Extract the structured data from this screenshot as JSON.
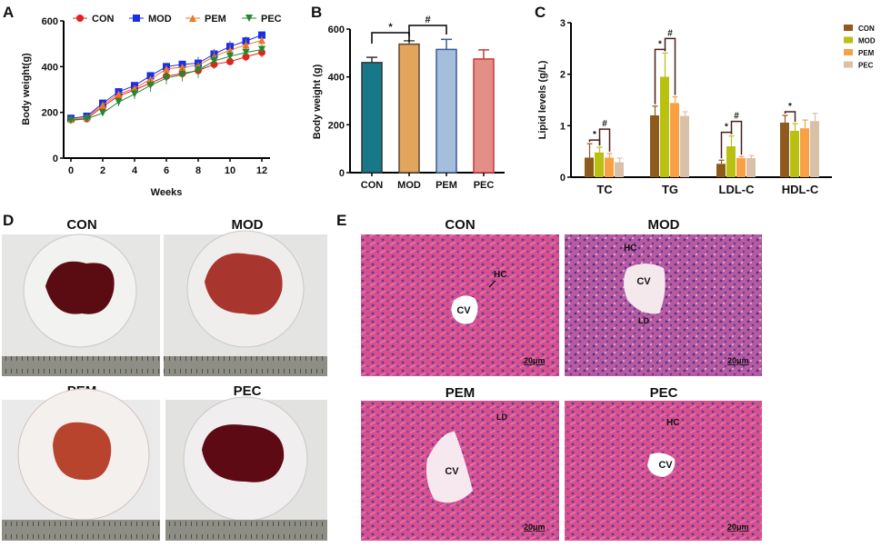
{
  "chart_data": [
    {
      "panel": "A",
      "type": "line",
      "xlabel": "Weeks",
      "ylabel": "Body weight(g)",
      "xlim": [
        0,
        12
      ],
      "ylim": [
        0,
        600
      ],
      "xticks": [
        0,
        2,
        4,
        6,
        8,
        10,
        12
      ],
      "yticks": [
        0,
        200,
        400,
        600
      ],
      "legend_position": "top",
      "x": [
        0,
        1,
        2,
        3,
        4,
        5,
        6,
        7,
        8,
        9,
        10,
        11,
        12
      ],
      "series": [
        {
          "name": "CON",
          "color": "#e8201c",
          "marker": "circle",
          "values": [
            168,
            172,
            225,
            272,
            298,
            328,
            358,
            370,
            383,
            410,
            422,
            443,
            462
          ],
          "errors": [
            8,
            8,
            10,
            12,
            14,
            15,
            18,
            18,
            20,
            20,
            15,
            20,
            22
          ]
        },
        {
          "name": "MOD",
          "color": "#1a2ee8",
          "marker": "square",
          "values": [
            174,
            183,
            240,
            290,
            317,
            360,
            400,
            410,
            415,
            455,
            488,
            512,
            538
          ],
          "errors": [
            6,
            6,
            8,
            8,
            8,
            10,
            10,
            14,
            28,
            22,
            25,
            20,
            12
          ]
        },
        {
          "name": "PEM",
          "color": "#f07820",
          "marker": "triangle-up",
          "values": [
            170,
            178,
            232,
            280,
            305,
            345,
            390,
            398,
            405,
            445,
            472,
            495,
            515
          ],
          "errors": [
            6,
            6,
            8,
            10,
            10,
            12,
            14,
            15,
            15,
            25,
            25,
            25,
            20
          ]
        },
        {
          "name": "PEC",
          "color": "#208a30",
          "marker": "triangle-down",
          "values": [
            165,
            172,
            197,
            245,
            280,
            318,
            350,
            365,
            385,
            425,
            445,
            462,
            475
          ],
          "errors": [
            6,
            6,
            8,
            18,
            22,
            28,
            28,
            30,
            35,
            30,
            25,
            22,
            20
          ]
        }
      ]
    },
    {
      "panel": "B",
      "type": "bar",
      "ylabel": "Body weight (g)",
      "ylim": [
        0,
        600
      ],
      "yticks": [
        0,
        200,
        400,
        600
      ],
      "categories": [
        "CON",
        "MOD",
        "PEM",
        "PEC"
      ],
      "values": [
        460,
        537,
        515,
        475
      ],
      "errors": [
        22,
        14,
        42,
        38
      ],
      "colors": [
        "#17788a",
        "#e3a45c",
        "#a5bedb",
        "#e48e88"
      ],
      "edge_colors": [
        "#333333",
        "#5a4a3a",
        "#3a5a9a",
        "#c83838"
      ],
      "annotations": [
        {
          "text": "*",
          "from": "CON",
          "to": "MOD"
        },
        {
          "text": "#",
          "from": "MOD",
          "to": "PEM"
        }
      ]
    },
    {
      "panel": "C",
      "type": "bar",
      "ylabel": "Lipid levels (g/L)",
      "ylim": [
        0,
        3
      ],
      "yticks": [
        0,
        1,
        2,
        3
      ],
      "legend_position": "right",
      "categories": [
        "TC",
        "TG",
        "LDL-C",
        "HDL-C"
      ],
      "series": [
        {
          "name": "CON",
          "color": "#8e5a1e",
          "values": [
            0.38,
            1.2,
            0.26,
            1.06
          ],
          "errors": [
            0.27,
            0.18,
            0.07,
            0.14
          ]
        },
        {
          "name": "MOD",
          "color": "#b8c010",
          "values": [
            0.48,
            1.95,
            0.6,
            0.9
          ],
          "errors": [
            0.1,
            0.46,
            0.2,
            0.14
          ]
        },
        {
          "name": "PEM",
          "color": "#f8a044",
          "values": [
            0.38,
            1.44,
            0.37,
            0.95
          ],
          "errors": [
            0.08,
            0.12,
            0.03,
            0.16
          ]
        },
        {
          "name": "PEC",
          "color": "#d9c0a8",
          "values": [
            0.29,
            1.19,
            0.37,
            1.09
          ],
          "errors": [
            0.08,
            0.08,
            0.05,
            0.15
          ]
        }
      ],
      "annotations": [
        {
          "group": "TC",
          "text": "*",
          "from": "CON",
          "to": "MOD"
        },
        {
          "group": "TC",
          "text": "#",
          "from": "MOD",
          "to": "PEM"
        },
        {
          "group": "TG",
          "text": "*",
          "from": "CON",
          "to": "MOD"
        },
        {
          "group": "TG",
          "text": "#",
          "from": "MOD",
          "to": "PEM"
        },
        {
          "group": "LDL-C",
          "text": "*",
          "from": "CON",
          "to": "MOD"
        },
        {
          "group": "LDL-C",
          "text": "#",
          "from": "MOD",
          "to": "PEM"
        },
        {
          "group": "HDL-C",
          "text": "*",
          "from": "CON",
          "to": "MOD"
        }
      ]
    }
  ],
  "panel_labels": {
    "a": "A",
    "b": "B",
    "c": "C",
    "d": "D",
    "e": "E"
  },
  "panel_d": {
    "photos": [
      {
        "label": "CON"
      },
      {
        "label": "MOD"
      },
      {
        "label": "PEM"
      },
      {
        "label": "PEC"
      }
    ]
  },
  "panel_e": {
    "images": [
      {
        "label": "CON",
        "annotations": [
          "HC",
          "CV"
        ],
        "scale": "20μm"
      },
      {
        "label": "MOD",
        "annotations": [
          "HC",
          "CV",
          "LD"
        ],
        "scale": "20μm"
      },
      {
        "label": "PEM",
        "annotations": [
          "LD",
          "CV"
        ],
        "scale": "20μm"
      },
      {
        "label": "PEC",
        "annotations": [
          "HC",
          "CV"
        ],
        "scale": "20μm"
      }
    ]
  }
}
